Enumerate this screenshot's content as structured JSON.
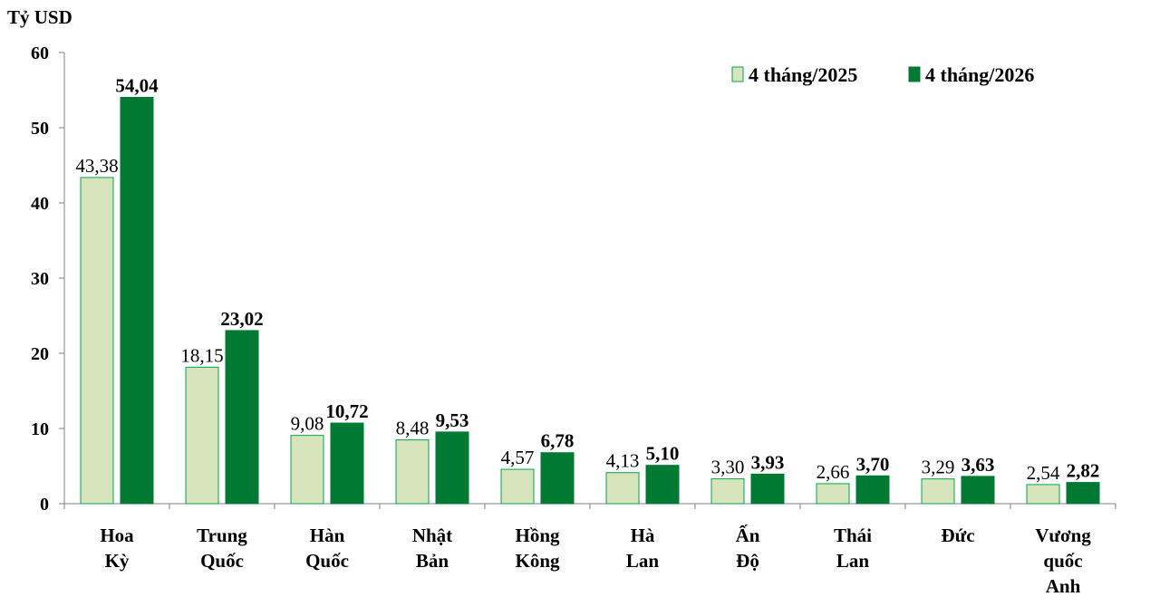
{
  "chart_data": {
    "type": "bar",
    "unit_label": "Tỷ USD",
    "categories": [
      [
        "Hoa",
        "Kỳ"
      ],
      [
        "Trung",
        "Quốc"
      ],
      [
        "Hàn",
        "Quốc"
      ],
      [
        "Nhật",
        "Bản"
      ],
      [
        "Hồng",
        "Kông"
      ],
      [
        "Hà",
        "Lan"
      ],
      [
        "Ấn",
        "Độ"
      ],
      [
        "Thái",
        "Lan"
      ],
      [
        "Đức"
      ],
      [
        "Vương",
        "quốc",
        "Anh"
      ]
    ],
    "series": [
      {
        "name": "4 tháng/2025",
        "color": "#d8e4bc",
        "stroke": "#00a651",
        "values": [
          43.38,
          18.15,
          9.08,
          8.48,
          4.57,
          4.13,
          3.3,
          2.66,
          3.29,
          2.54
        ],
        "labels": [
          "43,38",
          "18,15",
          "9,08",
          "8,48",
          "4,57",
          "4,13",
          "3,30",
          "2,66",
          "3,29",
          "2,54"
        ]
      },
      {
        "name": "4 tháng/2026",
        "color": "#007a33",
        "stroke": "#007a33",
        "values": [
          54.04,
          23.02,
          10.72,
          9.53,
          6.78,
          5.1,
          3.93,
          3.7,
          3.63,
          2.82
        ],
        "labels": [
          "54,04",
          "23,02",
          "10,72",
          "9,53",
          "6,78",
          "5,10",
          "3,93",
          "3,70",
          "3,63",
          "2,82"
        ]
      }
    ],
    "ylim": [
      0,
      60
    ],
    "yticks": [
      0,
      10,
      20,
      30,
      40,
      50,
      60
    ],
    "grid": false,
    "legend_position": "top-right"
  }
}
